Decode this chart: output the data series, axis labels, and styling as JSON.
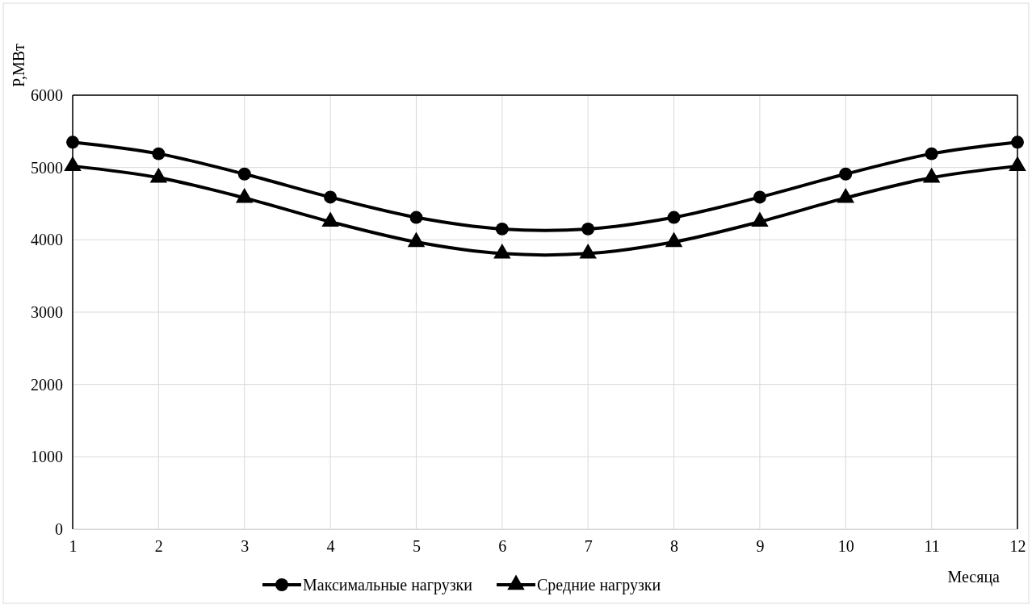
{
  "chart_data": {
    "type": "line",
    "xlabel": "Месяца",
    "ylabel": "P,МВт",
    "x": [
      1,
      2,
      3,
      4,
      5,
      6,
      7,
      8,
      9,
      10,
      11,
      12
    ],
    "series": [
      {
        "name": "Максимальные нагрузки",
        "color": "#000000",
        "marker": "circle",
        "values": [
          5350,
          5190,
          4910,
          4590,
          4310,
          4150,
          4150,
          4310,
          4590,
          4910,
          5190,
          5350
        ]
      },
      {
        "name": "Средние нагрузки",
        "color": "#000000",
        "marker": "triangle",
        "values": [
          5020,
          4860,
          4580,
          4250,
          3970,
          3810,
          3810,
          3970,
          4250,
          4580,
          4860,
          5020
        ]
      }
    ],
    "xlim": [
      1,
      12
    ],
    "xticks": [
      1,
      2,
      3,
      4,
      5,
      6,
      7,
      8,
      9,
      10,
      11,
      12
    ],
    "ylim": [
      0,
      6000
    ],
    "yticks": [
      0,
      1000,
      2000,
      3000,
      4000,
      5000,
      6000
    ],
    "grid": true,
    "legend": "bottom",
    "line_style": "solid"
  }
}
